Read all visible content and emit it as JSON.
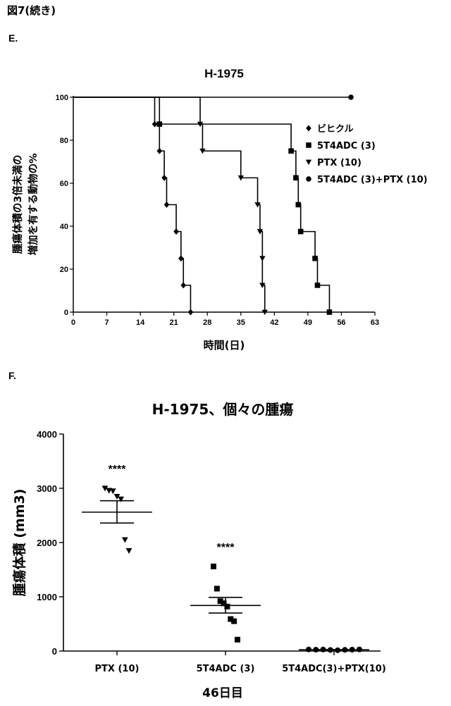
{
  "figure_caption": "図7(続き)",
  "panels": {
    "e_label": "E.",
    "f_label": "F."
  },
  "chart_data": [
    {
      "type": "line",
      "subtype": "step",
      "title": "H-1975",
      "xlabel": "時間(日)",
      "ylabel_lines": [
        "腫瘍体積の3倍未満の",
        "増加を有する動物の%"
      ],
      "xlim": [
        0,
        63
      ],
      "ylim": [
        0,
        100
      ],
      "x_ticks": [
        0,
        7,
        14,
        21,
        28,
        35,
        42,
        49,
        56,
        63
      ],
      "y_ticks": [
        0,
        20,
        40,
        60,
        80,
        100
      ],
      "legend_position": "right",
      "series": [
        {
          "name": "ビヒクル",
          "marker": "diamond",
          "points": [
            [
              0,
              100
            ],
            [
              17,
              87.5
            ],
            [
              18,
              75
            ],
            [
              19,
              62.5
            ],
            [
              19.5,
              50
            ],
            [
              21.5,
              37.5
            ],
            [
              22.5,
              25
            ],
            [
              23,
              12.5
            ],
            [
              24.5,
              0
            ]
          ]
        },
        {
          "name": "5T4ADC (3)",
          "marker": "square",
          "points": [
            [
              0,
              100
            ],
            [
              18,
              87.5
            ],
            [
              45.5,
              75
            ],
            [
              46.5,
              62.5
            ],
            [
              47,
              50
            ],
            [
              47.5,
              37.5
            ],
            [
              50.5,
              25
            ],
            [
              51,
              12.5
            ],
            [
              53.5,
              0
            ]
          ]
        },
        {
          "name": "PTX (10)",
          "marker": "triangle-down",
          "points": [
            [
              0,
              100
            ],
            [
              26.5,
              87.5
            ],
            [
              27,
              75
            ],
            [
              35,
              62.5
            ],
            [
              38.5,
              50
            ],
            [
              39,
              37.5
            ],
            [
              39.5,
              25
            ],
            [
              39.5,
              12.5
            ],
            [
              40,
              0
            ]
          ]
        },
        {
          "name": "5T4ADC (3)+PTX (10)",
          "marker": "circle",
          "points": [
            [
              0,
              100
            ],
            [
              58,
              100
            ]
          ]
        }
      ]
    },
    {
      "type": "scatter",
      "title": "H-1975、個々の腫瘍",
      "ylabel": "腫瘍体積 (mm3)",
      "xlabel": "46日目",
      "ylim": [
        0,
        4000
      ],
      "y_ticks": [
        0,
        1000,
        2000,
        3000,
        4000
      ],
      "groups": [
        {
          "label": "PTX (10)",
          "marker": "triangle-down",
          "annotation": "****",
          "values": [
            3000,
            2960,
            2950,
            2850,
            2800,
            2050,
            1850
          ],
          "mean": 2560,
          "sem_upper": 2770,
          "sem_lower": 2360
        },
        {
          "label": "5T4ADC (3)",
          "marker": "square",
          "annotation": "****",
          "values": [
            1560,
            1150,
            920,
            880,
            820,
            590,
            550,
            210
          ],
          "mean": 840,
          "sem_upper": 990,
          "sem_lower": 700
        },
        {
          "label": "5T4ADC(3)+PTX(10)",
          "marker": "circle",
          "annotation": "",
          "values": [
            30,
            25,
            28,
            20,
            15,
            22,
            26,
            30
          ],
          "mean": 24,
          "sem_upper": 26,
          "sem_lower": 22
        }
      ]
    }
  ]
}
